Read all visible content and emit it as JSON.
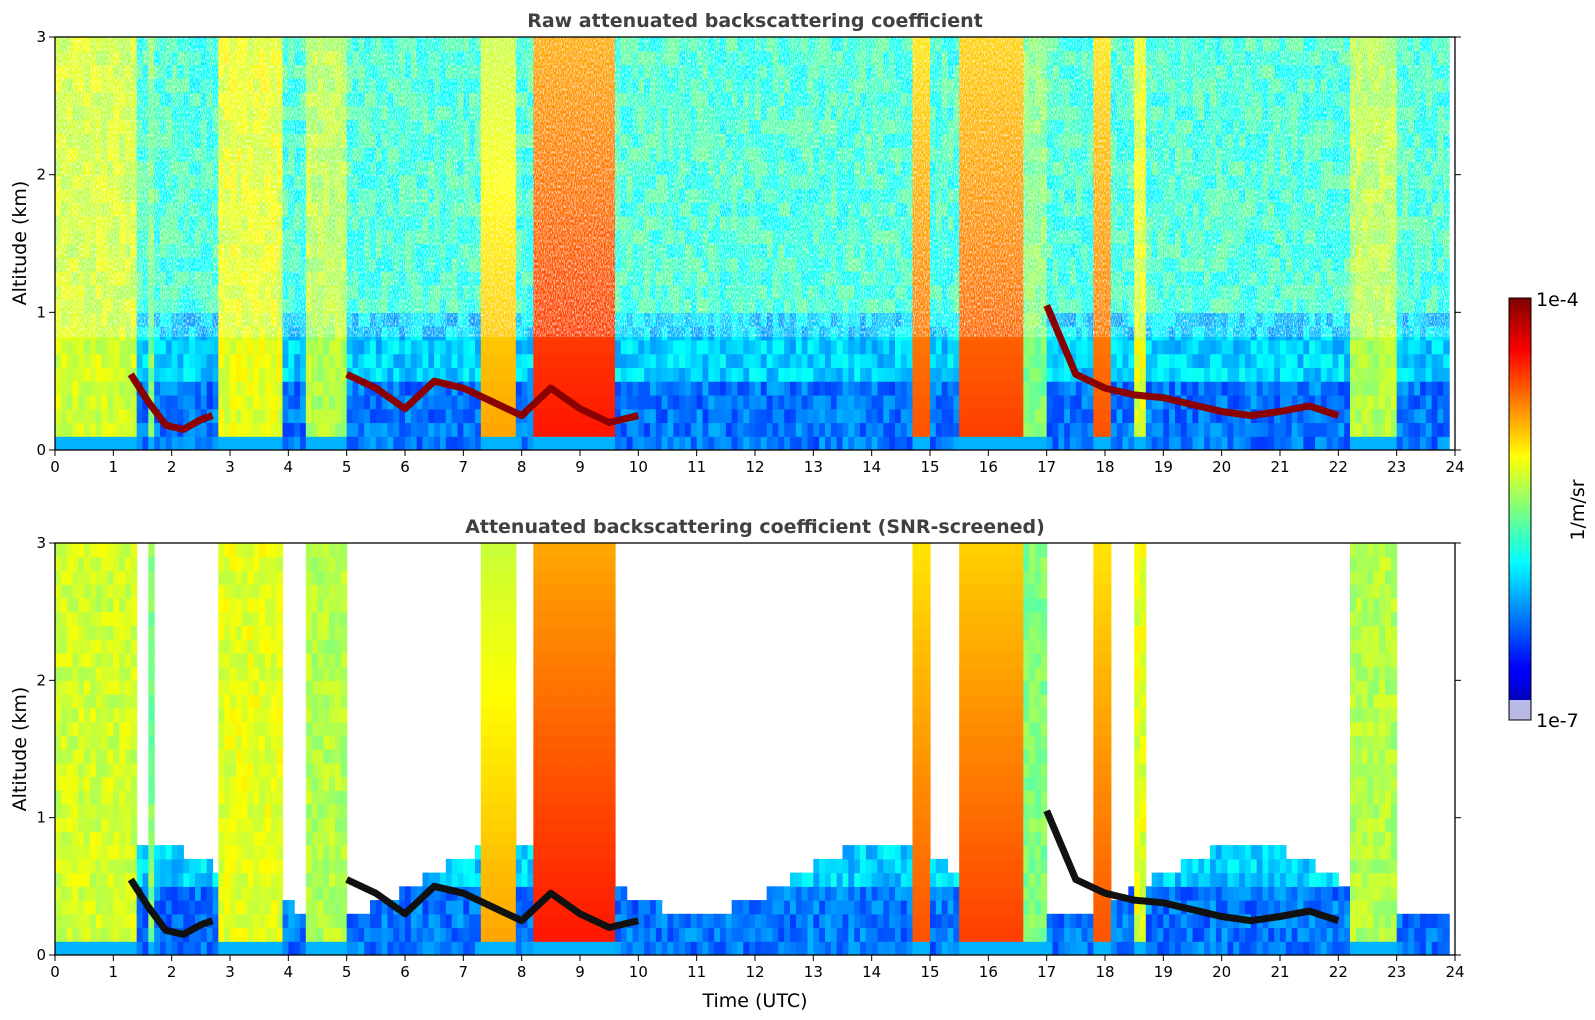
{
  "chart_data": [
    {
      "type": "heatmap",
      "title": "Raw attenuated backscattering coefficient",
      "ylabel": "Altitude (km)",
      "xlabel": "",
      "xlim": [
        0,
        24
      ],
      "ylim": [
        0,
        3
      ],
      "xticks": [
        "0",
        "1",
        "2",
        "3",
        "4",
        "5",
        "6",
        "7",
        "8",
        "9",
        "10",
        "11",
        "12",
        "13",
        "14",
        "15",
        "16",
        "17",
        "18",
        "19",
        "20",
        "21",
        "22",
        "23",
        "24"
      ],
      "yticks": [
        "0",
        "1",
        "2",
        "3"
      ],
      "screened": false,
      "grid": false
    },
    {
      "type": "heatmap",
      "title": "Attenuated backscattering coefficient (SNR-screened)",
      "ylabel": "Altitude (km)",
      "xlabel": "Time (UTC)",
      "xlim": [
        0,
        24
      ],
      "ylim": [
        0,
        3
      ],
      "xticks": [
        "0",
        "1",
        "2",
        "3",
        "4",
        "5",
        "6",
        "7",
        "8",
        "9",
        "10",
        "11",
        "12",
        "13",
        "14",
        "15",
        "16",
        "17",
        "18",
        "19",
        "20",
        "21",
        "22",
        "23",
        "24"
      ],
      "yticks": [
        "0",
        "1",
        "2",
        "3"
      ],
      "screened": true,
      "grid": false
    }
  ],
  "colorbar": {
    "label": "1/m/sr",
    "max_label": "1e-4",
    "min_label": "1e-7",
    "scale": "log",
    "colormap": "jet",
    "range": [
      1e-07,
      0.0001
    ]
  },
  "cloud_base": [
    {
      "t": 1.3,
      "h": 0.55
    },
    {
      "t": 1.6,
      "h": 0.35
    },
    {
      "t": 1.9,
      "h": 0.18
    },
    {
      "t": 2.2,
      "h": 0.15
    },
    {
      "t": 2.5,
      "h": 0.22
    },
    {
      "t": 2.7,
      "h": 0.25
    }
  ],
  "boundary_layer_top": [
    {
      "t": 5.0,
      "h": 0.55
    },
    {
      "t": 5.5,
      "h": 0.45
    },
    {
      "t": 6.0,
      "h": 0.3
    },
    {
      "t": 6.5,
      "h": 0.5
    },
    {
      "t": 7.0,
      "h": 0.45
    },
    {
      "t": 7.5,
      "h": 0.35
    },
    {
      "t": 8.0,
      "h": 0.25
    },
    {
      "t": 8.5,
      "h": 0.45
    },
    {
      "t": 9.0,
      "h": 0.3
    },
    {
      "t": 9.5,
      "h": 0.2
    },
    {
      "t": 10.0,
      "h": 0.25
    },
    {
      "t": 17.0,
      "h": 1.05
    },
    {
      "t": 17.5,
      "h": 0.55
    },
    {
      "t": 18.0,
      "h": 0.45
    },
    {
      "t": 18.5,
      "h": 0.4
    },
    {
      "t": 19.0,
      "h": 0.38
    },
    {
      "t": 19.5,
      "h": 0.33
    },
    {
      "t": 20.0,
      "h": 0.28
    },
    {
      "t": 20.5,
      "h": 0.25
    },
    {
      "t": 21.0,
      "h": 0.28
    },
    {
      "t": 21.5,
      "h": 0.32
    },
    {
      "t": 22.0,
      "h": 0.25
    }
  ],
  "colors": {
    "clear_air": "#ffffff",
    "max_backscatter": "#7f0000",
    "min_backscatter": "#00007f",
    "title_color": "#404040"
  }
}
